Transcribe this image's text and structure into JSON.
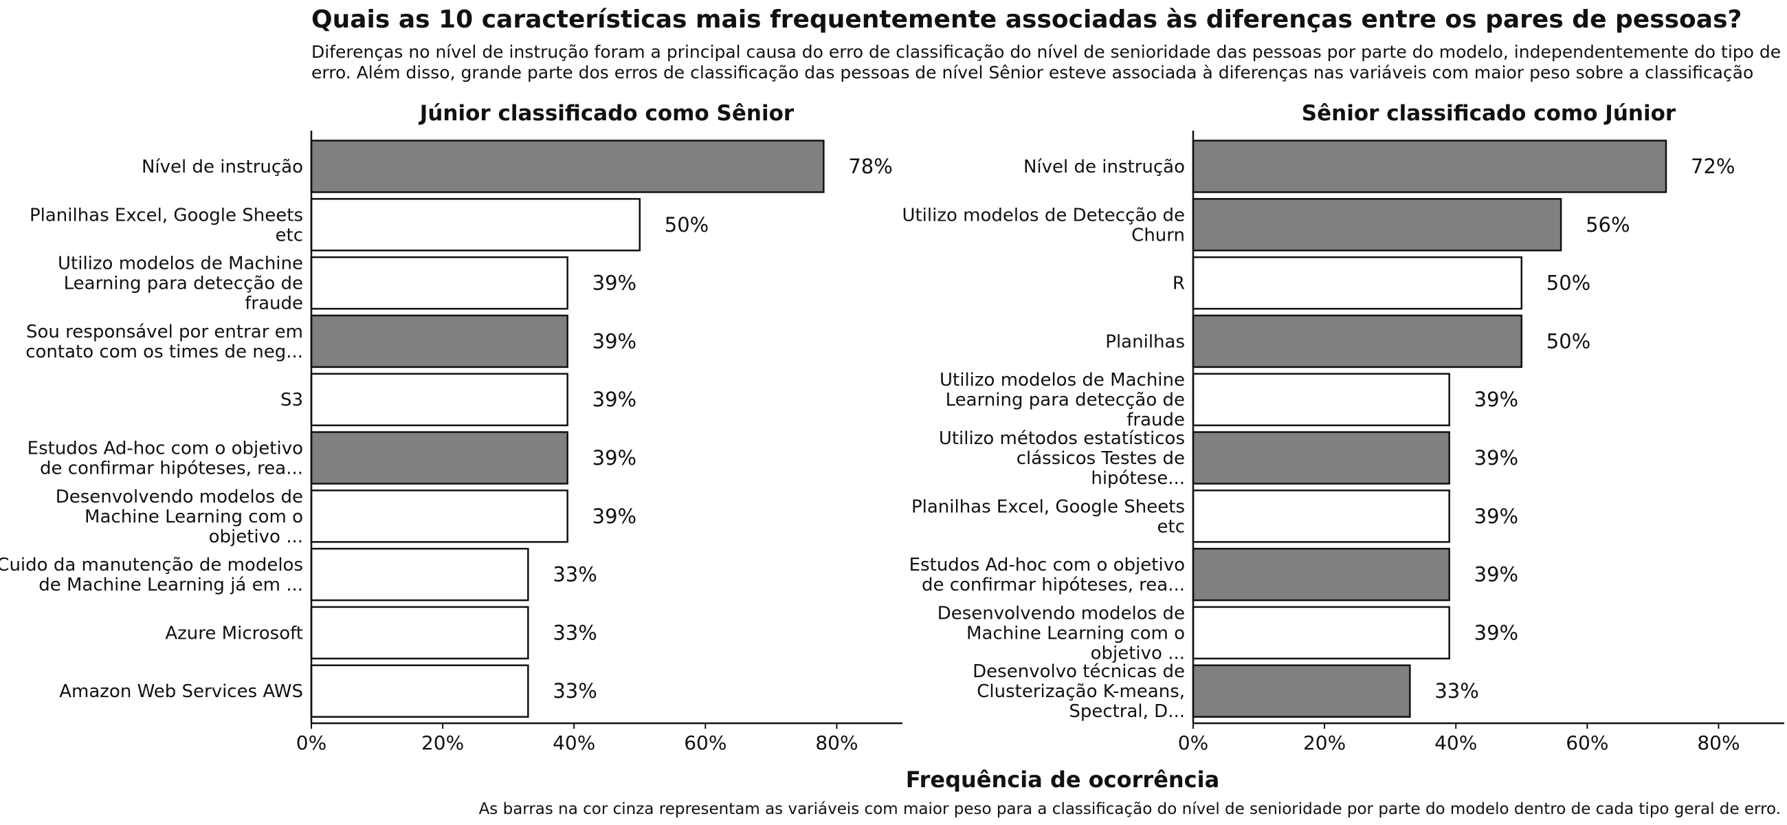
{
  "title": "Quais as 10 características mais frequentemente associadas às diferenças entre os pares de pessoas?",
  "subtitle_lines": [
    "Diferenças no nível de instrução foram a principal causa do erro de classificação do nível de senioridade das pessoas por parte do modelo, independentemente do tipo de",
    "erro. Além disso, grande parte dos erros de classificação das pessoas de nível Sênior esteve associada à diferenças nas variáveis com maior peso sobre a classificação"
  ],
  "xlabel": "Frequência de ocorrência",
  "caption": "As barras na cor cinza representam as variáveis com maior peso para a classificação do nível de senioridade por parte do modelo dentro de cada tipo geral de erro.",
  "colors": {
    "highlight": "#808080",
    "normal": "#ffffff",
    "stroke": "#111111"
  },
  "chart_data": [
    {
      "type": "bar",
      "orientation": "horizontal",
      "title": "Júnior classificado como Sênior",
      "xlim": [
        0,
        90
      ],
      "xticks": [
        0,
        20,
        40,
        60,
        80
      ],
      "xtick_labels": [
        "0%",
        "20%",
        "40%",
        "60%",
        "80%"
      ],
      "categories": [
        [
          "Nível de instrução"
        ],
        [
          "Planilhas Excel, Google Sheets",
          "etc"
        ],
        [
          "Utilizo modelos de Machine",
          "Learning para detecção de",
          "fraude"
        ],
        [
          "Sou responsável por entrar em",
          "contato com os times de neg..."
        ],
        [
          "S3"
        ],
        [
          "Estudos Ad-hoc com o objetivo",
          "de confirmar hipóteses, rea..."
        ],
        [
          "Desenvolvendo modelos de",
          "Machine Learning com o",
          "objetivo ..."
        ],
        [
          "Cuido da manutenção de modelos",
          "de Machine Learning já em ..."
        ],
        [
          "Azure Microsoft"
        ],
        [
          "Amazon Web Services AWS"
        ]
      ],
      "values": [
        78,
        50,
        39,
        39,
        39,
        39,
        39,
        33,
        33,
        33
      ],
      "value_labels": [
        "78%",
        "50%",
        "39%",
        "39%",
        "39%",
        "39%",
        "39%",
        "33%",
        "33%",
        "33%"
      ],
      "highlighted": [
        true,
        false,
        false,
        true,
        false,
        true,
        false,
        false,
        false,
        false
      ]
    },
    {
      "type": "bar",
      "orientation": "horizontal",
      "title": "Sênior classificado como Júnior",
      "xlim": [
        0,
        90
      ],
      "xticks": [
        0,
        20,
        40,
        60,
        80
      ],
      "xtick_labels": [
        "0%",
        "20%",
        "40%",
        "60%",
        "80%"
      ],
      "categories": [
        [
          "Nível de instrução"
        ],
        [
          "Utilizo modelos de Detecção de",
          "Churn"
        ],
        [
          "R"
        ],
        [
          "Planilhas"
        ],
        [
          "Utilizo modelos de Machine",
          "Learning para detecção de",
          "fraude"
        ],
        [
          "Utilizo métodos estatísticos",
          "clássicos Testes de",
          "hipótese..."
        ],
        [
          "Planilhas Excel, Google Sheets",
          "etc"
        ],
        [
          "Estudos Ad-hoc com o objetivo",
          "de confirmar hipóteses, rea..."
        ],
        [
          "Desenvolvendo modelos de",
          "Machine Learning com o",
          "objetivo ..."
        ],
        [
          "Desenvolvo técnicas de",
          "Clusterização K-means,",
          "Spectral, D..."
        ]
      ],
      "values": [
        72,
        56,
        50,
        50,
        39,
        39,
        39,
        39,
        39,
        33
      ],
      "value_labels": [
        "72%",
        "56%",
        "50%",
        "50%",
        "39%",
        "39%",
        "39%",
        "39%",
        "39%",
        "33%"
      ],
      "highlighted": [
        true,
        true,
        false,
        true,
        false,
        true,
        false,
        true,
        false,
        true
      ]
    }
  ]
}
